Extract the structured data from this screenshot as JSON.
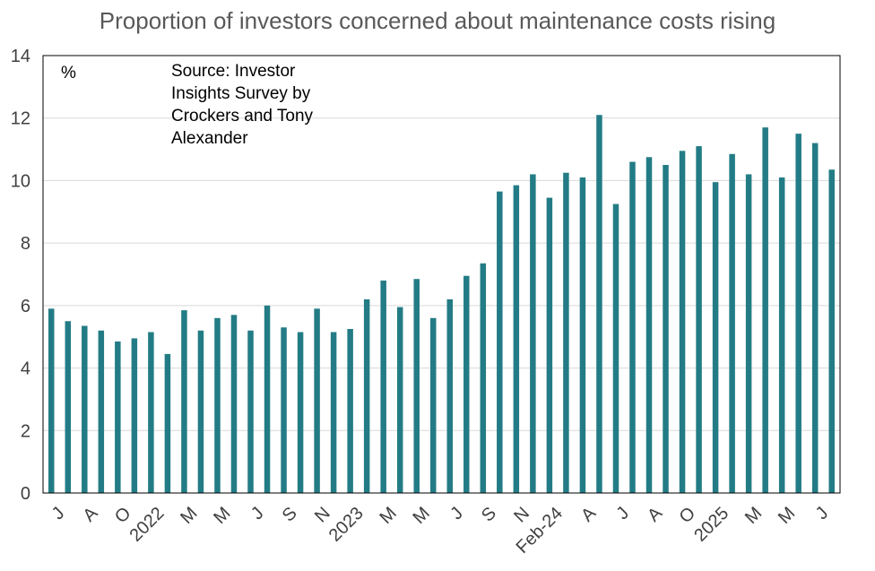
{
  "chart_data": {
    "type": "bar",
    "title": "Proportion of investors concerned about maintenance costs rising",
    "unit_label": "%",
    "source_note": [
      "Source: Investor",
      "Insights Survey by",
      "Crockers and Tony",
      "Alexander"
    ],
    "ylim": [
      0,
      14
    ],
    "yticks": [
      0,
      2,
      4,
      6,
      8,
      10,
      12,
      14
    ],
    "grid": true,
    "bar_color": "#237C85",
    "values": [
      5.9,
      5.5,
      5.35,
      5.2,
      4.85,
      4.95,
      5.15,
      4.45,
      5.85,
      5.2,
      5.6,
      5.7,
      5.2,
      6.0,
      5.3,
      5.15,
      5.9,
      5.15,
      5.25,
      6.2,
      6.8,
      5.95,
      6.85,
      5.6,
      6.2,
      6.95,
      7.35,
      9.65,
      9.85,
      10.2,
      9.45,
      10.25,
      10.1,
      12.1,
      9.25,
      10.6,
      10.75,
      10.5,
      10.95,
      11.1,
      9.95,
      10.85,
      10.2,
      11.7,
      10.1,
      11.5,
      11.2,
      10.35
    ],
    "xtick_labels": [
      {
        "index": 0,
        "label": "J"
      },
      {
        "index": 2,
        "label": "A"
      },
      {
        "index": 4,
        "label": "O"
      },
      {
        "index": 6,
        "label": "2022"
      },
      {
        "index": 8,
        "label": "M"
      },
      {
        "index": 10,
        "label": "M"
      },
      {
        "index": 12,
        "label": "J"
      },
      {
        "index": 14,
        "label": "S"
      },
      {
        "index": 16,
        "label": "N"
      },
      {
        "index": 18,
        "label": "2023"
      },
      {
        "index": 20,
        "label": "M"
      },
      {
        "index": 22,
        "label": "M"
      },
      {
        "index": 24,
        "label": "J"
      },
      {
        "index": 26,
        "label": "S"
      },
      {
        "index": 28,
        "label": "N"
      },
      {
        "index": 30,
        "label": "Feb-24"
      },
      {
        "index": 32,
        "label": "A"
      },
      {
        "index": 34,
        "label": "J"
      },
      {
        "index": 36,
        "label": "A"
      },
      {
        "index": 38,
        "label": "O"
      },
      {
        "index": 40,
        "label": "2025"
      },
      {
        "index": 42,
        "label": "M"
      },
      {
        "index": 44,
        "label": "M"
      },
      {
        "index": 46,
        "label": "J"
      }
    ]
  }
}
